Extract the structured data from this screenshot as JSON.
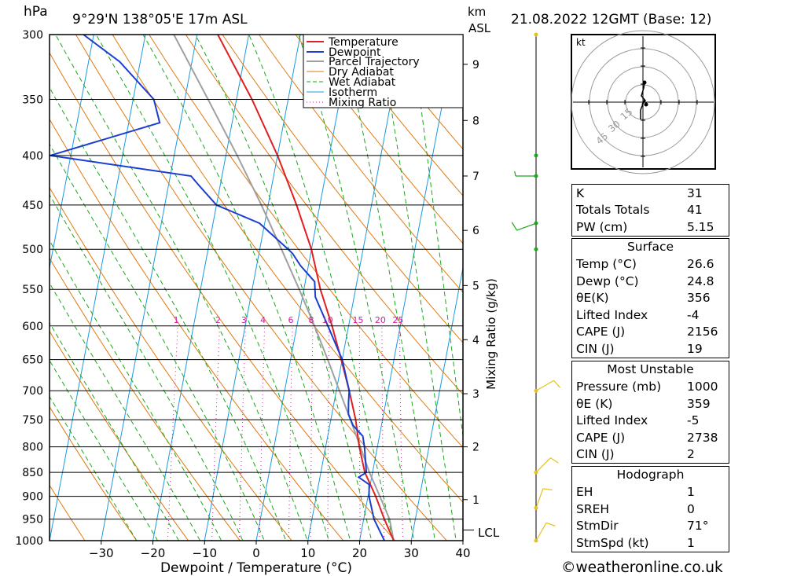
{
  "header": {
    "location": "9°29'N  138°05'E  17m  ASL",
    "datetime": "21.08.2022  12GMT  (Base: 12)",
    "pressure_unit": "hPa",
    "height_unit": "km",
    "height_unit2": "ASL"
  },
  "axes": {
    "xlabel": "Dewpoint / Temperature (°C)",
    "mixing_label": "Mixing Ratio (g/kg)",
    "lcl_label": "LCL"
  },
  "legend": [
    "Temperature",
    "Dewpoint",
    "Parcel Trajectory",
    "Dry Adiabat",
    "Wet Adiabat",
    "Isotherm",
    "Mixing Ratio"
  ],
  "colors": {
    "temperature": "#e02020",
    "dewpoint": "#1a3fd0",
    "parcel": "#a0a0a0",
    "dry_adiabat": "#e07a10",
    "wet_adiabat": "#1aa81a",
    "isotherm": "#1a9ae0",
    "mixing_ratio": "#d01aa0",
    "wind": "#e6c020",
    "wind_green": "#1aa81a"
  },
  "chart_data": {
    "type": "line",
    "title": "9°29'N  138°05'E  17m  ASL",
    "xlabel": "Dewpoint / Temperature (°C)",
    "ylabel": "hPa",
    "xlim": [
      -40,
      40
    ],
    "ylim": [
      1000,
      300
    ],
    "pressure_ticks": [
      300,
      350,
      400,
      450,
      500,
      550,
      600,
      650,
      700,
      750,
      800,
      850,
      900,
      950,
      1000
    ],
    "temperature_ticks": [
      -30,
      -20,
      -10,
      0,
      10,
      20,
      30,
      40
    ],
    "height_ticks_km": [
      {
        "km": "1",
        "p": 907
      },
      {
        "km": "2",
        "p": 800
      },
      {
        "km": "3",
        "p": 705
      },
      {
        "km": "4",
        "p": 620
      },
      {
        "km": "5",
        "p": 545
      },
      {
        "km": "6",
        "p": 478
      },
      {
        "km": "7",
        "p": 420
      },
      {
        "km": "8",
        "p": 368
      },
      {
        "km": "9",
        "p": 322
      }
    ],
    "mixing_ratio_labels": [
      "1",
      "2",
      "3",
      "4",
      "6",
      "8",
      "10",
      "15",
      "20",
      "25"
    ],
    "series": [
      {
        "name": "Temperature",
        "points": [
          [
            1000,
            26.6
          ],
          [
            950,
            24.0
          ],
          [
            900,
            21.5
          ],
          [
            850,
            18.5
          ],
          [
            800,
            16.5
          ],
          [
            750,
            14.8
          ],
          [
            700,
            12.5
          ],
          [
            650,
            9.8
          ],
          [
            600,
            6.8
          ],
          [
            550,
            3.2
          ],
          [
            500,
            0.0
          ],
          [
            450,
            -4.5
          ],
          [
            400,
            -10.0
          ],
          [
            350,
            -17.0
          ],
          [
            300,
            -26.0
          ]
        ]
      },
      {
        "name": "Dewpoint",
        "points": [
          [
            1000,
            24.8
          ],
          [
            950,
            22.0
          ],
          [
            900,
            20.2
          ],
          [
            875,
            19.8
          ],
          [
            860,
            17.5
          ],
          [
            850,
            18.8
          ],
          [
            800,
            17.5
          ],
          [
            780,
            16.8
          ],
          [
            760,
            14.5
          ],
          [
            740,
            13.2
          ],
          [
            720,
            12.8
          ],
          [
            700,
            12.5
          ],
          [
            650,
            10.0
          ],
          [
            600,
            6.0
          ],
          [
            560,
            2.5
          ],
          [
            540,
            1.8
          ],
          [
            520,
            -1.5
          ],
          [
            505,
            -3.5
          ],
          [
            500,
            -4.5
          ],
          [
            470,
            -11.0
          ],
          [
            450,
            -20.0
          ],
          [
            430,
            -24.0
          ],
          [
            420,
            -26.0
          ],
          [
            400,
            -54.0
          ],
          [
            370,
            -34.0
          ],
          [
            350,
            -36.0
          ],
          [
            320,
            -44.0
          ],
          [
            300,
            -52.0
          ]
        ]
      },
      {
        "name": "Parcel Trajectory",
        "points": [
          [
            1000,
            26.6
          ],
          [
            950,
            25.0
          ],
          [
            900,
            22.3
          ],
          [
            850,
            19.4
          ],
          [
            800,
            16.7
          ],
          [
            750,
            13.8
          ],
          [
            700,
            10.6
          ],
          [
            650,
            7.2
          ],
          [
            600,
            3.4
          ],
          [
            550,
            -0.9
          ],
          [
            500,
            -5.8
          ],
          [
            450,
            -11.3
          ],
          [
            400,
            -17.8
          ],
          [
            350,
            -25.5
          ],
          [
            300,
            -34.5
          ]
        ]
      }
    ],
    "lcl_pressure": 975,
    "wind_barbs": [
      {
        "p": 1000,
        "dir": 30,
        "kt": 10,
        "color": "#e6c020"
      },
      {
        "p": 925,
        "dir": 20,
        "kt": 10,
        "color": "#e6c020"
      },
      {
        "p": 850,
        "dir": 45,
        "kt": 10,
        "color": "#e6c020"
      },
      {
        "p": 700,
        "dir": 60,
        "kt": 10,
        "color": "#e6c020"
      },
      {
        "p": 500,
        "dir": 0,
        "kt": 0,
        "color": "#1aa81a"
      },
      {
        "p": 470,
        "dir": 250,
        "kt": 10,
        "color": "#1aa81a"
      },
      {
        "p": 420,
        "dir": 270,
        "kt": 5,
        "color": "#1aa81a"
      },
      {
        "p": 400,
        "dir": 0,
        "kt": 0,
        "color": "#1aa81a"
      },
      {
        "p": 300,
        "dir": 0,
        "kt": 0,
        "color": "#e6c020"
      }
    ]
  },
  "hodograph": {
    "unit": "kt",
    "ring_labels": [
      "15",
      "30",
      "45"
    ]
  },
  "indices": [
    {
      "k": "K",
      "v": "31"
    },
    {
      "k": "Totals Totals",
      "v": "41"
    },
    {
      "k": "PW (cm)",
      "v": "5.15"
    }
  ],
  "surface": {
    "title": "Surface",
    "rows": [
      {
        "k": "Temp (°C)",
        "v": "26.6"
      },
      {
        "k": "Dewp (°C)",
        "v": "24.8"
      },
      {
        "k": "θE(K)",
        "v": "356"
      },
      {
        "k": "Lifted Index",
        "v": "-4"
      },
      {
        "k": "CAPE (J)",
        "v": "2156"
      },
      {
        "k": "CIN (J)",
        "v": "19"
      }
    ]
  },
  "most_unstable": {
    "title": "Most Unstable",
    "rows": [
      {
        "k": "Pressure (mb)",
        "v": "1000"
      },
      {
        "k": "θE (K)",
        "v": "359"
      },
      {
        "k": "Lifted Index",
        "v": "-5"
      },
      {
        "k": "CAPE (J)",
        "v": "2738"
      },
      {
        "k": "CIN (J)",
        "v": "2"
      }
    ]
  },
  "hodograph_table": {
    "title": "Hodograph",
    "rows": [
      {
        "k": "EH",
        "v": "1"
      },
      {
        "k": "SREH",
        "v": "0"
      },
      {
        "k": "StmDir",
        "v": "71°"
      },
      {
        "k": "StmSpd (kt)",
        "v": "1"
      }
    ]
  },
  "footer": "©weatheronline.co.uk"
}
